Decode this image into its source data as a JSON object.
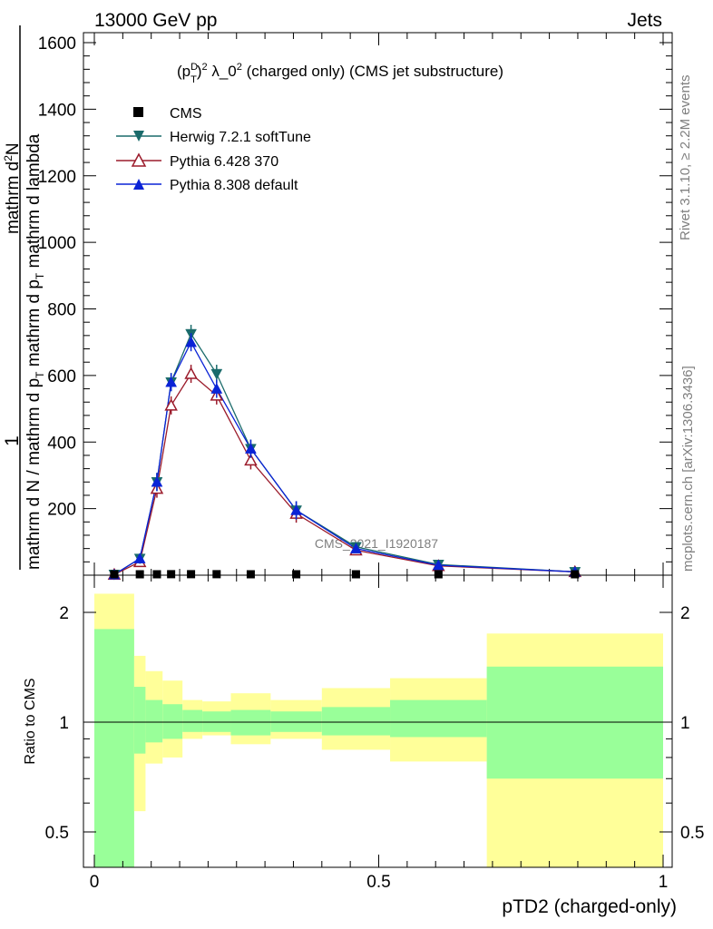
{
  "header": {
    "left": "13000 GeV pp",
    "right": "Jets"
  },
  "side_texts": {
    "rivet": "Rivet 3.1.10, ≥ 2.2M events",
    "mcplots": "mcplots.cern.ch [arXiv:1306.3436]"
  },
  "colors": {
    "cms": "#000000",
    "herwig": "#1a6b6b",
    "pythia6": "#9b1b2b",
    "pythia8": "#0a23d6",
    "band_inner": "#99ff99",
    "band_outer": "#ffff99"
  },
  "chart_data": [
    {
      "type": "line",
      "title_parts": {
        "a": "(p",
        "sup1": "D",
        "sub1": "T",
        "b": ")",
        "sup2": "2",
        "c": " λ_0",
        "sup3": "2",
        "d": " (charged only) (CMS jet substructure)"
      },
      "ylabel_parts": {
        "l1": "1",
        "l2": "mathrm d N / mathrm d p",
        "l2s": "T",
        "l2b": " mathrm d p",
        "l2bs": "T",
        "l2c": " mathrm d lambda",
        "l3": "mathrm d",
        "l3s": "2",
        "l3b": "N"
      },
      "watermark": "CMS_2021_I1920187",
      "xlim": [
        0,
        1
      ],
      "ylim": [
        0,
        1600
      ],
      "yticks": [
        "200",
        "400",
        "600",
        "800",
        "1000",
        "1200",
        "1400",
        "1600"
      ],
      "legend_position": "top-left",
      "series": [
        {
          "name": "CMS",
          "marker": "square",
          "x": [
            0.035,
            0.08,
            0.11,
            0.135,
            0.17,
            0.215,
            0.275,
            0.355,
            0.46,
            0.605,
            0.845
          ],
          "y": [
            0,
            2,
            2,
            3,
            3,
            3,
            2,
            1,
            1,
            0.3,
            0.05
          ]
        },
        {
          "name": "Herwig 7.2.1 softTune",
          "marker": "triangle-down",
          "x": [
            0.035,
            0.08,
            0.11,
            0.135,
            0.17,
            0.215,
            0.275,
            0.355,
            0.46,
            0.605,
            0.845
          ],
          "y": [
            2,
            50,
            280,
            580,
            725,
            605,
            380,
            195,
            85,
            32,
            10
          ]
        },
        {
          "name": "Pythia 6.428 370",
          "marker": "triangle-open",
          "x": [
            0.035,
            0.08,
            0.11,
            0.135,
            0.17,
            0.215,
            0.275,
            0.355,
            0.46,
            0.605,
            0.845
          ],
          "y": [
            2,
            40,
            260,
            510,
            605,
            540,
            345,
            185,
            75,
            28,
            10
          ]
        },
        {
          "name": "Pythia 8.308 default",
          "marker": "triangle-up",
          "x": [
            0.035,
            0.08,
            0.11,
            0.135,
            0.17,
            0.215,
            0.275,
            0.355,
            0.46,
            0.605,
            0.845
          ],
          "y": [
            2,
            50,
            280,
            580,
            700,
            560,
            380,
            195,
            80,
            30,
            10
          ]
        }
      ]
    },
    {
      "type": "area",
      "ylabel": "Ratio to CMS",
      "xlabel": "pTD2 (charged-only)",
      "xlim": [
        0,
        1
      ],
      "ylim": [
        0.35,
        2.25
      ],
      "xticks": [
        "0",
        "0.5",
        "1"
      ],
      "yticks": [
        "0.5",
        "1",
        "2"
      ],
      "bands": [
        {
          "x0": 0.0,
          "x1": 0.07,
          "inner": [
            0.35,
            1.8
          ],
          "outer": [
            0.35,
            2.25
          ]
        },
        {
          "x0": 0.07,
          "x1": 0.09,
          "inner": [
            0.82,
            1.25
          ],
          "outer": [
            0.57,
            1.52
          ]
        },
        {
          "x0": 0.09,
          "x1": 0.12,
          "inner": [
            0.88,
            1.15
          ],
          "outer": [
            0.77,
            1.38
          ]
        },
        {
          "x0": 0.12,
          "x1": 0.155,
          "inner": [
            0.9,
            1.12
          ],
          "outer": [
            0.8,
            1.3
          ]
        },
        {
          "x0": 0.155,
          "x1": 0.19,
          "inner": [
            0.94,
            1.08
          ],
          "outer": [
            0.9,
            1.15
          ]
        },
        {
          "x0": 0.19,
          "x1": 0.24,
          "inner": [
            0.94,
            1.07
          ],
          "outer": [
            0.92,
            1.14
          ]
        },
        {
          "x0": 0.24,
          "x1": 0.31,
          "inner": [
            0.92,
            1.08
          ],
          "outer": [
            0.87,
            1.2
          ]
        },
        {
          "x0": 0.31,
          "x1": 0.4,
          "inner": [
            0.94,
            1.07
          ],
          "outer": [
            0.9,
            1.15
          ]
        },
        {
          "x0": 0.4,
          "x1": 0.52,
          "inner": [
            0.92,
            1.1
          ],
          "outer": [
            0.84,
            1.24
          ]
        },
        {
          "x0": 0.52,
          "x1": 0.69,
          "inner": [
            0.91,
            1.15
          ],
          "outer": [
            0.78,
            1.32
          ]
        },
        {
          "x0": 0.69,
          "x1": 1.0,
          "inner": [
            0.7,
            1.42
          ],
          "outer": [
            0.35,
            1.75
          ]
        }
      ]
    }
  ]
}
